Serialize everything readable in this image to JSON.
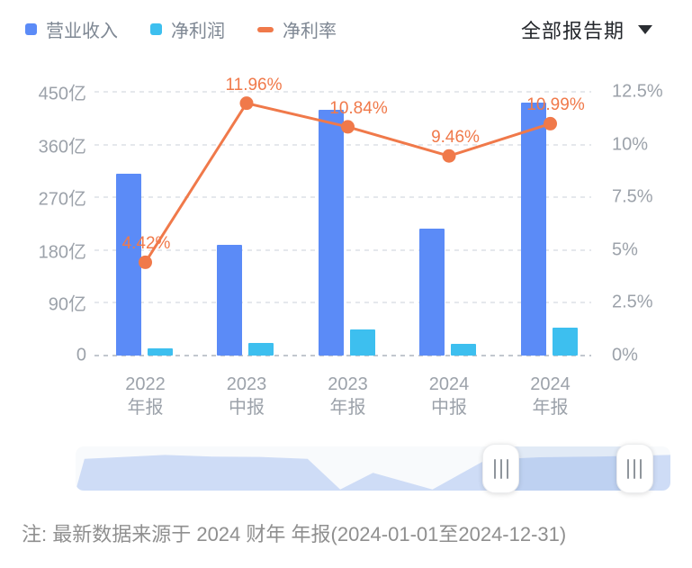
{
  "legend": {
    "items": [
      {
        "label": "营业收入",
        "color": "#5B8BF7",
        "marker": "square"
      },
      {
        "label": "净利润",
        "color": "#3DBFEF",
        "marker": "square"
      },
      {
        "label": "净利率",
        "color": "#F0794A",
        "marker": "dash"
      }
    ]
  },
  "period_selector": {
    "label": "全部报告期"
  },
  "chart_data": {
    "type": "bar",
    "combo": "bar+line",
    "categories": [
      "2022 年报",
      "2023 中报",
      "2023 年报",
      "2024 中报",
      "2024 年报"
    ],
    "category_lines": [
      [
        "2022",
        "年报"
      ],
      [
        "2023",
        "中报"
      ],
      [
        "2023",
        "年报"
      ],
      [
        "2024",
        "中报"
      ],
      [
        "2024",
        "年报"
      ]
    ],
    "series": [
      {
        "name": "营业收入",
        "type": "bar",
        "yaxis": "left",
        "unit": "亿",
        "color": "#5B8BF7",
        "values": [
          311,
          189,
          419,
          216,
          431
        ]
      },
      {
        "name": "净利润",
        "type": "bar",
        "yaxis": "left",
        "unit": "亿",
        "color": "#3DBFEF",
        "values": [
          13,
          22,
          44,
          20,
          47
        ]
      },
      {
        "name": "净利率",
        "type": "line",
        "yaxis": "right",
        "unit": "%",
        "color": "#F0794A",
        "values": [
          4.42,
          11.96,
          10.84,
          9.46,
          10.99
        ],
        "point_labels": [
          "4.42%",
          "11.96%",
          "10.84%",
          "9.46%",
          "10.99%"
        ],
        "label_dx": [
          1,
          8,
          12,
          7,
          6
        ]
      }
    ],
    "left_axis": {
      "min": 0,
      "max": 450,
      "ticks": [
        "450亿",
        "360亿",
        "270亿",
        "180亿",
        "90亿",
        "0"
      ]
    },
    "right_axis": {
      "min": 0,
      "max": 12.5,
      "ticks": [
        "12.5%",
        "10%",
        "7.5%",
        "5%",
        "2.5%",
        "0%"
      ]
    },
    "grid": "dashed-horizontal",
    "legend_position": "top-left"
  },
  "datazoom": {
    "window_start": 0.715,
    "window_end": 0.94,
    "area_color": "#CEDCF6",
    "profile": [
      [
        0,
        0
      ],
      [
        0.015,
        0.8
      ],
      [
        0.07,
        0.84
      ],
      [
        0.15,
        0.9
      ],
      [
        0.23,
        0.86
      ],
      [
        0.31,
        0.85
      ],
      [
        0.39,
        0.8
      ],
      [
        0.445,
        0.03
      ],
      [
        0.5,
        0.45
      ],
      [
        0.6,
        0.03
      ],
      [
        0.69,
        0.78
      ],
      [
        0.78,
        0.84
      ],
      [
        0.875,
        0.86
      ],
      [
        1,
        0.9
      ]
    ]
  },
  "note": "注: 最新数据来源于 2024 财年 年报(2024-01-01至2024-12-31)"
}
